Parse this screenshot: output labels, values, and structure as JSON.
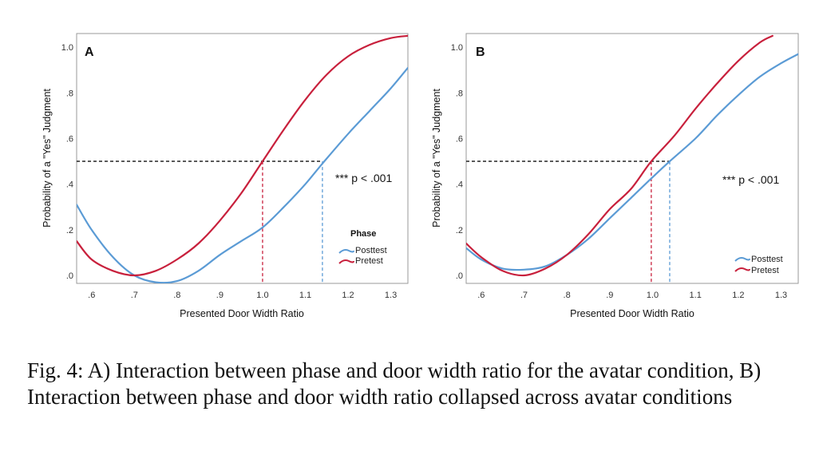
{
  "caption": "Fig. 4: A) Interaction between phase and door width ratio for the avatar condition, B) Interaction between phase and door width ratio collapsed across avatar conditions",
  "chart_data": [
    {
      "type": "line",
      "panel": "A",
      "xlabel": "Presented Door Width Ratio",
      "ylabel": "Probability of a \"Yes\" Judgment",
      "xlim": [
        0.565,
        1.34
      ],
      "ylim": [
        -0.035,
        1.06
      ],
      "x_ticks": [
        0.6,
        0.7,
        0.8,
        0.9,
        1.0,
        1.1,
        1.2,
        1.3
      ],
      "x_tick_labels": [
        ".6",
        ".7",
        ".8",
        ".9",
        "1.0",
        "1.1",
        "1.2",
        "1.3"
      ],
      "y_ticks": [
        0.0,
        0.2,
        0.4,
        0.6,
        0.8,
        1.0
      ],
      "y_tick_labels": [
        ".0",
        ".2",
        ".4",
        ".6",
        ".8",
        "1.0"
      ],
      "grid": false,
      "annotation": "*** p < .001",
      "legend_title": "Phase",
      "legend_position": "lower-right",
      "threshold_y": 0.5,
      "series": [
        {
          "name": "Posttest",
          "color": "#5b9bd5",
          "points": [
            [
              0.565,
              0.31
            ],
            [
              0.6,
              0.2
            ],
            [
              0.65,
              0.08
            ],
            [
              0.7,
              0.0
            ],
            [
              0.75,
              -0.03
            ],
            [
              0.8,
              -0.025
            ],
            [
              0.85,
              0.02
            ],
            [
              0.9,
              0.09
            ],
            [
              0.95,
              0.15
            ],
            [
              1.0,
              0.21
            ],
            [
              1.05,
              0.3
            ],
            [
              1.1,
              0.4
            ],
            [
              1.14,
              0.49
            ],
            [
              1.2,
              0.62
            ],
            [
              1.25,
              0.72
            ],
            [
              1.3,
              0.82
            ],
            [
              1.34,
              0.91
            ]
          ],
          "threshold_x": 1.14
        },
        {
          "name": "Pretest",
          "color": "#c8203c",
          "points": [
            [
              0.565,
              0.15
            ],
            [
              0.6,
              0.07
            ],
            [
              0.65,
              0.02
            ],
            [
              0.7,
              0.0
            ],
            [
              0.75,
              0.02
            ],
            [
              0.8,
              0.07
            ],
            [
              0.85,
              0.14
            ],
            [
              0.9,
              0.24
            ],
            [
              0.95,
              0.36
            ],
            [
              1.0,
              0.5
            ],
            [
              1.05,
              0.64
            ],
            [
              1.1,
              0.77
            ],
            [
              1.15,
              0.88
            ],
            [
              1.2,
              0.96
            ],
            [
              1.25,
              1.01
            ],
            [
              1.3,
              1.04
            ],
            [
              1.34,
              1.05
            ]
          ],
          "threshold_x": 1.0
        }
      ]
    },
    {
      "type": "line",
      "panel": "B",
      "xlabel": "Presented Door Width Ratio",
      "ylabel": "Probability of a \"Yes\" Judgment",
      "xlim": [
        0.565,
        1.34
      ],
      "ylim": [
        -0.035,
        1.06
      ],
      "x_ticks": [
        0.6,
        0.7,
        0.8,
        0.9,
        1.0,
        1.1,
        1.2,
        1.3
      ],
      "x_tick_labels": [
        ".6",
        ".7",
        ".8",
        ".9",
        "1.0",
        "1.1",
        "1.2",
        "1.3"
      ],
      "y_ticks": [
        0.0,
        0.2,
        0.4,
        0.6,
        0.8,
        1.0
      ],
      "y_tick_labels": [
        ".0",
        ".2",
        ".4",
        ".6",
        ".8",
        "1.0"
      ],
      "grid": false,
      "annotation": "*** p < .001",
      "legend_position": "lower-right",
      "threshold_y": 0.5,
      "series": [
        {
          "name": "Posttest",
          "color": "#5b9bd5",
          "points": [
            [
              0.565,
              0.12
            ],
            [
              0.6,
              0.07
            ],
            [
              0.65,
              0.03
            ],
            [
              0.7,
              0.025
            ],
            [
              0.75,
              0.04
            ],
            [
              0.8,
              0.09
            ],
            [
              0.85,
              0.16
            ],
            [
              0.9,
              0.25
            ],
            [
              0.95,
              0.34
            ],
            [
              1.0,
              0.43
            ],
            [
              1.04,
              0.5
            ],
            [
              1.1,
              0.6
            ],
            [
              1.15,
              0.7
            ],
            [
              1.2,
              0.79
            ],
            [
              1.25,
              0.87
            ],
            [
              1.3,
              0.93
            ],
            [
              1.34,
              0.97
            ]
          ],
          "threshold_x": 1.04
        },
        {
          "name": "Pretest",
          "color": "#c8203c",
          "points": [
            [
              0.565,
              0.14
            ],
            [
              0.6,
              0.08
            ],
            [
              0.65,
              0.02
            ],
            [
              0.7,
              0.0
            ],
            [
              0.75,
              0.03
            ],
            [
              0.8,
              0.09
            ],
            [
              0.85,
              0.18
            ],
            [
              0.9,
              0.29
            ],
            [
              0.95,
              0.38
            ],
            [
              0.997,
              0.5
            ],
            [
              1.05,
              0.61
            ],
            [
              1.1,
              0.73
            ],
            [
              1.15,
              0.84
            ],
            [
              1.2,
              0.94
            ],
            [
              1.25,
              1.02
            ],
            [
              1.28,
              1.05
            ]
          ],
          "threshold_x": 0.997
        }
      ]
    }
  ]
}
